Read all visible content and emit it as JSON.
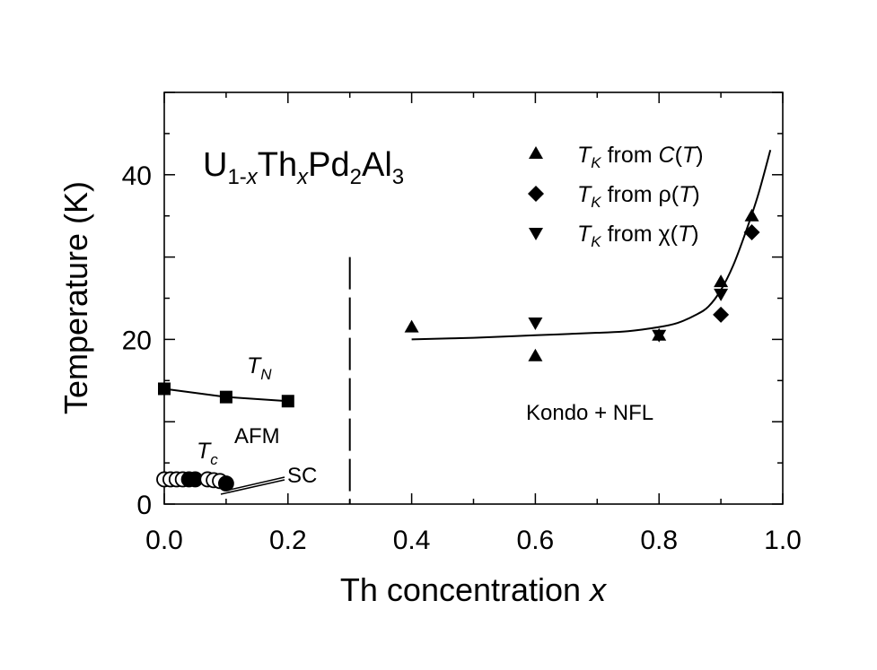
{
  "chart_data": {
    "type": "scatter",
    "title": {
      "base": "U",
      "sub1": "1-",
      "sub1_italic": "x",
      "mid": "Th",
      "sub2_italic": "x",
      "mid2": "Pd",
      "sub3": "2",
      "mid3": "Al",
      "sub4": "3"
    },
    "xlabel": {
      "text": "Th concentration ",
      "italic": "x"
    },
    "ylabel": "Temperature  (K)",
    "xlim": [
      0.0,
      1.0
    ],
    "ylim": [
      0,
      50
    ],
    "xticks": [
      0.0,
      0.2,
      0.4,
      0.6,
      0.8,
      1.0
    ],
    "xtick_labels": [
      "0.0",
      "0.2",
      "0.4",
      "0.6",
      "0.8",
      "1.0"
    ],
    "yticks": [
      0,
      20,
      40
    ],
    "ytick_labels": [
      "0",
      "20",
      "40"
    ],
    "legend": {
      "position": "top-right",
      "entries": [
        {
          "marker": "triangle-up",
          "prefix": "T",
          "sub": "K",
          "text": " from ",
          "var": "C",
          "open": "(",
          "arg": "T",
          "close": ")"
        },
        {
          "marker": "diamond",
          "prefix": "T",
          "sub": "K",
          "text": " from ",
          "var": "ρ",
          "open": "(",
          "arg": "T",
          "close": ")"
        },
        {
          "marker": "triangle-down",
          "prefix": "T",
          "sub": "K",
          "text": " from ",
          "var": "χ",
          "open": "(",
          "arg": "T",
          "close": ")"
        }
      ]
    },
    "series": [
      {
        "name": "T_N",
        "marker": "square",
        "line": true,
        "x": [
          0.0,
          0.1,
          0.2
        ],
        "y": [
          14,
          13,
          12.5
        ]
      },
      {
        "name": "T_c",
        "marker": "circle",
        "line": false,
        "x": [
          0.0,
          0.01,
          0.02,
          0.03,
          0.04,
          0.05,
          0.07,
          0.08,
          0.09,
          0.1
        ],
        "y": [
          3.0,
          3.0,
          3.0,
          3.0,
          3.0,
          3.0,
          3.0,
          2.9,
          2.8,
          2.5
        ]
      },
      {
        "name": "T_K from C(T)",
        "marker": "triangle-up",
        "x": [
          0.4,
          0.6,
          0.8,
          0.9,
          0.95
        ],
        "y": [
          21.5,
          18,
          20.5,
          27,
          35
        ]
      },
      {
        "name": "T_K from rho(T)",
        "marker": "diamond",
        "x": [
          0.9,
          0.95
        ],
        "y": [
          23,
          33
        ]
      },
      {
        "name": "T_K from chi(T)",
        "marker": "triangle-down",
        "x": [
          0.6,
          0.8,
          0.9
        ],
        "y": [
          22,
          20.5,
          25.5
        ]
      }
    ],
    "fit_curve": {
      "x": [
        0.4,
        0.5,
        0.6,
        0.7,
        0.75,
        0.8,
        0.83,
        0.86,
        0.88,
        0.9,
        0.92,
        0.94,
        0.96,
        0.98
      ],
      "y": [
        20.0,
        20.2,
        20.5,
        20.8,
        21.0,
        21.5,
        22.0,
        23.0,
        24.0,
        26.0,
        29.0,
        33.0,
        37.5,
        43.0
      ]
    },
    "boundary_x": 0.3,
    "boundary_ymax": 30,
    "annotations": {
      "tn": {
        "base": "T",
        "sub": "N"
      },
      "tc": {
        "base": "T",
        "sub": "c"
      },
      "afm": "AFM",
      "sc": "SC",
      "kondo": "Kondo + NFL"
    }
  }
}
